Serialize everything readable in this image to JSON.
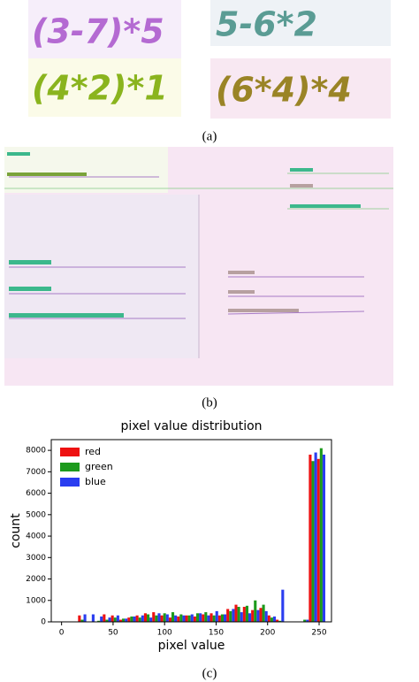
{
  "panel_a": {
    "images": [
      {
        "text": "(3-7)*5"
      },
      {
        "text": "5-6*2"
      },
      {
        "text": "(4*2)*1"
      },
      {
        "text": "(6*4)*4"
      }
    ],
    "caption": "(a)"
  },
  "panel_b": {
    "caption": "(b)"
  },
  "chart_data": {
    "type": "histogram",
    "title": "pixel value distribution",
    "x_label": "pixel value",
    "y_label": "count",
    "bins": [
      0,
      8,
      16,
      24,
      32,
      40,
      48,
      56,
      64,
      72,
      80,
      88,
      96,
      104,
      112,
      120,
      128,
      136,
      144,
      152,
      160,
      168,
      176,
      184,
      192,
      200,
      208,
      216,
      224,
      232,
      240,
      248,
      256
    ],
    "series": [
      {
        "name": "red",
        "color": "#ee1111",
        "values": [
          0,
          0,
          300,
          0,
          0,
          350,
          300,
          100,
          200,
          300,
          400,
          450,
          300,
          200,
          250,
          300,
          250,
          350,
          400,
          300,
          600,
          800,
          700,
          550,
          650,
          300,
          100,
          0,
          0,
          0,
          7800,
          7600
        ]
      },
      {
        "name": "green",
        "color": "#1c9a1c",
        "values": [
          0,
          0,
          100,
          0,
          50,
          100,
          200,
          150,
          250,
          200,
          350,
          300,
          400,
          450,
          350,
          300,
          400,
          450,
          300,
          350,
          500,
          700,
          750,
          1000,
          800,
          200,
          50,
          0,
          0,
          100,
          7500,
          8100
        ]
      },
      {
        "name": "blue",
        "color": "#2a3df0",
        "values": [
          0,
          0,
          350,
          350,
          250,
          200,
          300,
          150,
          250,
          300,
          200,
          400,
          350,
          300,
          300,
          350,
          400,
          300,
          500,
          350,
          600,
          450,
          400,
          550,
          500,
          250,
          1500,
          0,
          0,
          100,
          7900,
          7800
        ]
      }
    ],
    "xlim": [
      -10,
      262
    ],
    "ylim": [
      0,
      8500
    ],
    "xticks": [
      0,
      50,
      100,
      150,
      200,
      250
    ],
    "yticks": [
      0,
      1000,
      2000,
      3000,
      4000,
      5000,
      6000,
      7000,
      8000
    ],
    "legend": "upper left",
    "caption": "(c)"
  }
}
